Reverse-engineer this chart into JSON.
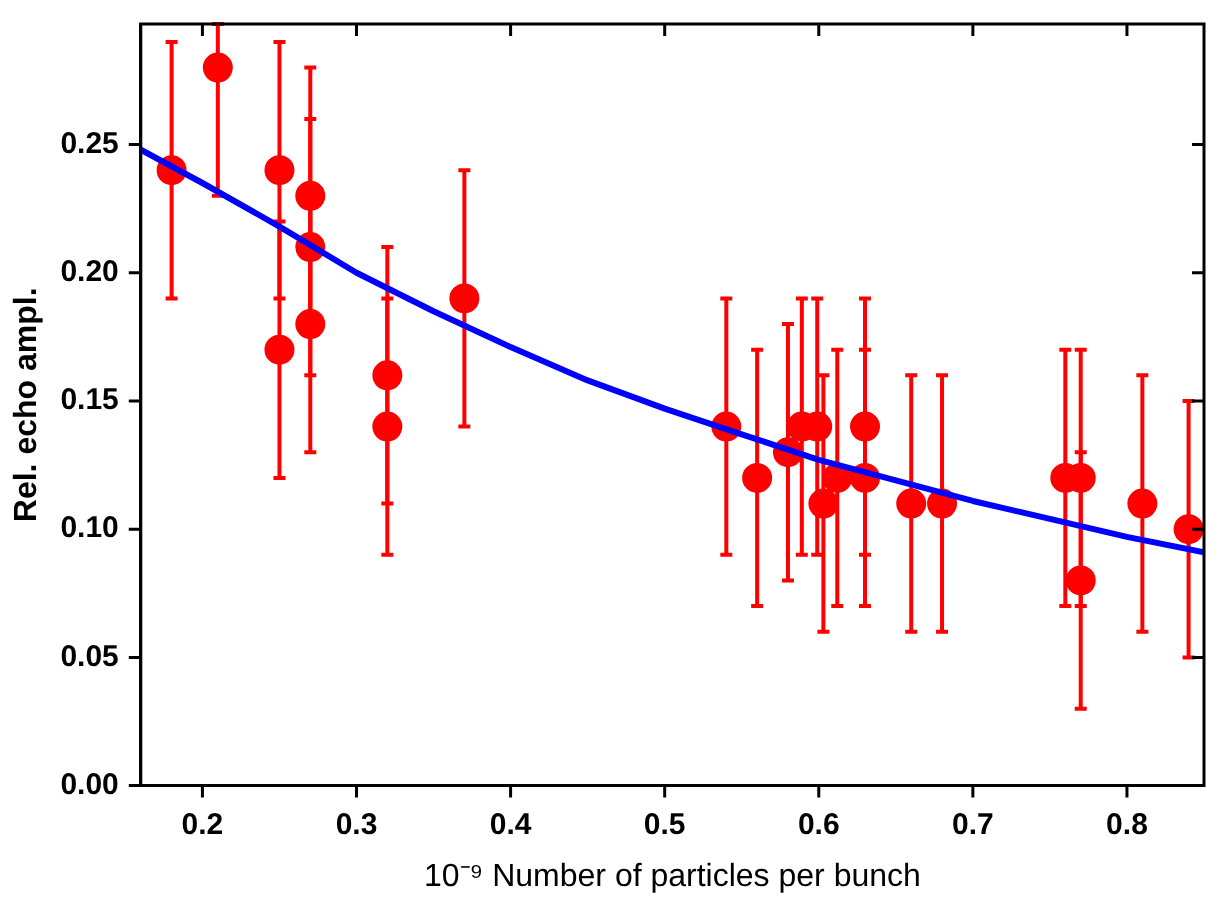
{
  "chart_data": {
    "type": "scatter",
    "xlabel": "10⁻⁹ Number of particles per bunch",
    "ylabel": "Rel. echo ampl.",
    "xlim": [
      0.16,
      0.85
    ],
    "ylim": [
      0,
      0.297
    ],
    "xticks": [
      0.2,
      0.3,
      0.4,
      0.5,
      0.6,
      0.7,
      0.8
    ],
    "yticks": [
      {
        "value": 0,
        "label": "0.00"
      },
      0.05,
      {
        "value": 0.1,
        "label": "0.10"
      },
      0.15,
      {
        "value": 0.2,
        "label": "0.20"
      },
      0.25
    ],
    "grid": false,
    "legend": false,
    "marker": "circle",
    "series": [
      {
        "color": "#ff0000",
        "x": [
          0.18,
          0.21,
          0.25,
          0.25,
          0.27,
          0.27,
          0.27,
          0.32,
          0.32,
          0.37,
          0.54,
          0.56,
          0.58,
          0.589,
          0.599,
          0.603,
          0.612,
          0.63,
          0.63,
          0.66,
          0.68,
          0.76,
          0.77,
          0.77,
          0.81,
          0.84
        ],
        "values": [
          0.24,
          0.28,
          0.24,
          0.17,
          0.23,
          0.21,
          0.18,
          0.16,
          0.14,
          0.19,
          0.14,
          0.12,
          0.13,
          0.14,
          0.14,
          0.11,
          0.12,
          0.14,
          0.12,
          0.11,
          0.11,
          0.12,
          0.12,
          0.08,
          0.11,
          0.1
        ],
        "errors": [
          0.05,
          [
            0.23,
            0.297
          ],
          0.05,
          0.05,
          0.05,
          0.05,
          0.05,
          0.05,
          0.05,
          0.05,
          0.05,
          0.05,
          0.05,
          0.05,
          0.05,
          0.05,
          0.05,
          0.05,
          0.05,
          0.05,
          0.05,
          0.05,
          0.05,
          0.05,
          0.05,
          0.05
        ]
      },
      {
        "type": "line",
        "color": "#0000ff",
        "marker": "none",
        "line_style": "solid",
        "x": [
          0.16,
          0.2,
          0.25,
          0.3,
          0.35,
          0.4,
          0.45,
          0.5,
          0.55,
          0.6,
          0.65,
          0.7,
          0.75,
          0.8,
          0.85
        ],
        "values": [
          0.248,
          0.235,
          0.218,
          0.2,
          0.185,
          0.171,
          0.158,
          0.147,
          0.137,
          0.127,
          0.119,
          0.111,
          0.104,
          0.097,
          0.091
        ]
      }
    ]
  }
}
